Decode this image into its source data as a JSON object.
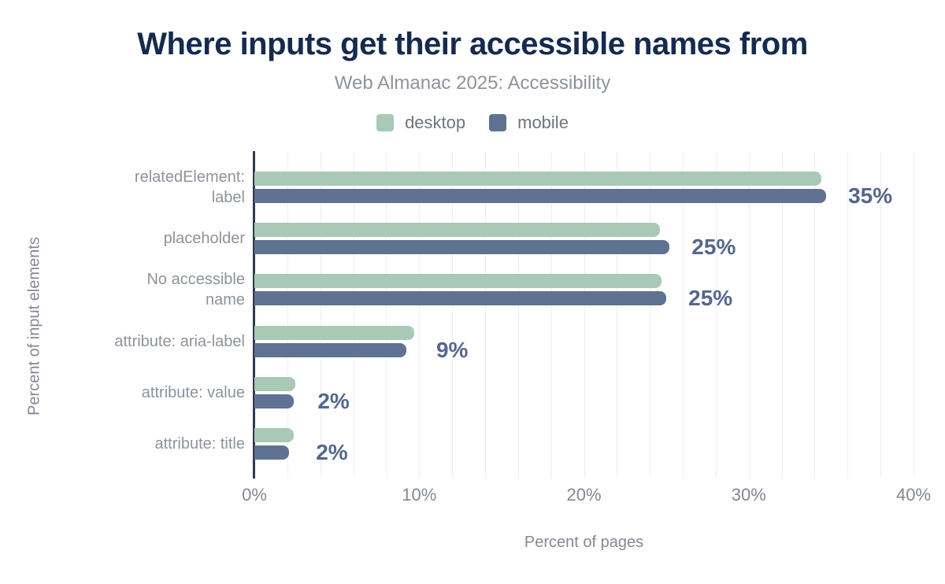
{
  "title": "Where inputs get their accessible names from",
  "subtitle": "Web Almanac 2025: Accessibility",
  "legend": {
    "items": [
      {
        "label": "desktop",
        "color": "#a7c9b5"
      },
      {
        "label": "mobile",
        "color": "#5f7292"
      }
    ]
  },
  "chart_data": {
    "type": "bar",
    "orientation": "horizontal",
    "title": "Where inputs get their accessible names from",
    "subtitle": "Web Almanac 2025: Accessibility",
    "xlabel": "Percent of pages",
    "ylabel": "Percent of input elements",
    "xlim": [
      0,
      40
    ],
    "x_ticks": [
      {
        "value": 0,
        "label": "0%"
      },
      {
        "value": 10,
        "label": "10%"
      },
      {
        "value": 20,
        "label": "20%"
      },
      {
        "value": 30,
        "label": "30%"
      },
      {
        "value": 40,
        "label": "40%"
      }
    ],
    "grid": true,
    "grid_step": 2,
    "legend_position": "top",
    "categories": [
      "relatedElement: label",
      "placeholder",
      "No accessible name",
      "attribute: aria-label",
      "attribute: value",
      "attribute: title"
    ],
    "category_lines": [
      [
        "relatedElement:",
        "label"
      ],
      [
        "placeholder"
      ],
      [
        "No accessible",
        "name"
      ],
      [
        "attribute: aria-label"
      ],
      [
        "attribute: value"
      ],
      [
        "attribute: title"
      ]
    ],
    "series": [
      {
        "name": "desktop",
        "color": "#a7c9b5",
        "values": [
          34.4,
          24.6,
          24.7,
          9.7,
          2.5,
          2.4
        ]
      },
      {
        "name": "mobile",
        "color": "#5f7292",
        "values": [
          34.7,
          25.2,
          25.0,
          9.2,
          2.4,
          2.1
        ]
      }
    ],
    "value_labels": [
      "35%",
      "25%",
      "25%",
      "9%",
      "2%",
      "2%"
    ]
  },
  "colors": {
    "title_text": "#152a4e",
    "subtitle_text": "#8d939c",
    "category_text": "#8d939c",
    "tick_text": "#818893",
    "axis_title_text": "#828994",
    "value_label_text": "#54678d",
    "axis_line": "#2f3a4d",
    "gridline": "#efeff2",
    "background": "#ffffff"
  }
}
